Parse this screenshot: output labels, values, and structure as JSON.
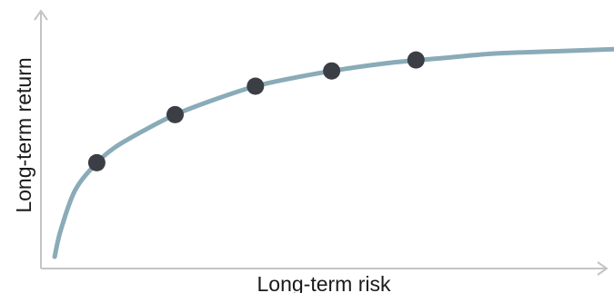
{
  "chart_data": {
    "type": "line",
    "xlabel": "Long-term risk",
    "ylabel": "Long-term return",
    "series": [
      {
        "curve": [
          {
            "x": 0.0,
            "y": 0.0
          },
          {
            "x": 0.3,
            "y": 0.12
          },
          {
            "x": 1.0,
            "y": 0.3
          },
          {
            "x": 2.0,
            "y": 0.42
          },
          {
            "x": 3.0,
            "y": 0.5
          },
          {
            "x": 4.5,
            "y": 0.58
          },
          {
            "x": 6.0,
            "y": 0.65
          },
          {
            "x": 8.0,
            "y": 0.72
          },
          {
            "x": 10.0,
            "y": 0.78
          },
          {
            "x": 12.0,
            "y": 0.82
          },
          {
            "x": 14.5,
            "y": 0.86
          },
          {
            "x": 17.0,
            "y": 0.89
          },
          {
            "x": 19.5,
            "y": 0.91
          },
          {
            "x": 22.0,
            "y": 0.93
          },
          {
            "x": 25.0,
            "y": 0.94
          },
          {
            "x": 28.0,
            "y": 0.95
          }
        ],
        "points": [
          {
            "x": 2.1,
            "y": 0.43
          },
          {
            "x": 6.0,
            "y": 0.65
          },
          {
            "x": 10.0,
            "y": 0.78
          },
          {
            "x": 13.8,
            "y": 0.85
          },
          {
            "x": 18.0,
            "y": 0.9
          }
        ]
      }
    ],
    "xlim": [
      -1,
      28
    ],
    "ylim": [
      -0.05,
      1.05
    ],
    "grid": false,
    "colors": {
      "curve": "#8aabb8",
      "points": "#3b3e44",
      "axis": "#c4c4c4",
      "text": "#1a1a1a"
    }
  }
}
